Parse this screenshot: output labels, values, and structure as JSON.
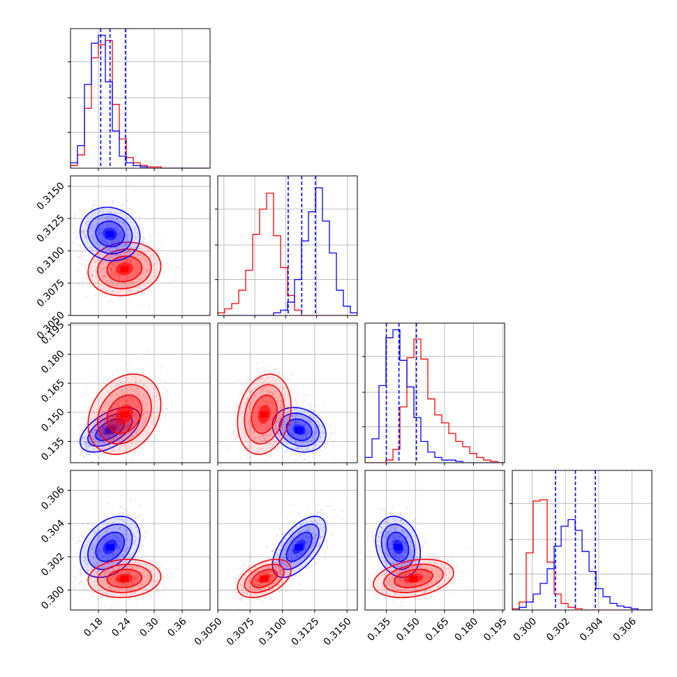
{
  "chart_data": {
    "type": "corner",
    "grid": true,
    "colors": {
      "blue": "#0000ff",
      "red": "#ff0000"
    },
    "series": [
      {
        "color": "blue",
        "mean": [
          0.205,
          0.3113,
          0.141,
          0.3026
        ],
        "std": [
          0.028,
          0.0009,
          0.005,
          0.0008
        ],
        "corr": [
          [
            1,
            -0.1,
            0.55,
            0.35
          ],
          [
            -0.1,
            1,
            -0.2,
            0.6
          ],
          [
            0.55,
            -0.2,
            1,
            -0.2
          ],
          [
            0.35,
            0.6,
            -0.2,
            1
          ]
        ]
      },
      {
        "color": "red",
        "mean": [
          0.236,
          0.3086,
          0.149,
          0.3007
        ],
        "std": [
          0.034,
          0.0009,
          0.009,
          0.0005
        ],
        "corr": [
          [
            1,
            0.1,
            0.25,
            0.1
          ],
          [
            0.1,
            1,
            0.2,
            0.45
          ],
          [
            0.25,
            0.2,
            1,
            0.3
          ],
          [
            0.1,
            0.45,
            0.3,
            1
          ]
        ]
      }
    ],
    "histograms": [
      {
        "range": [
          0.12,
          0.42
        ],
        "bins": 20,
        "blue": [
          0.04,
          0.17,
          0.63,
          0.94,
          1.0,
          0.65,
          0.28,
          0.09,
          0.04,
          0.02,
          0.01,
          0,
          0,
          0,
          0,
          0,
          0,
          0,
          0,
          0
        ],
        "red": [
          0.02,
          0.1,
          0.45,
          0.83,
          0.93,
          0.96,
          0.48,
          0.22,
          0.08,
          0.04,
          0.02,
          0.01,
          0.01,
          0,
          0,
          0,
          0,
          0,
          0,
          0
        ],
        "quantiles": [
          0.185,
          0.205,
          0.238
        ]
      },
      {
        "range": [
          0.3045,
          0.3158
        ],
        "bins": 20,
        "blue": [
          0,
          0,
          0,
          0,
          0,
          0,
          0,
          0,
          0.02,
          0.04,
          0.1,
          0.27,
          0.56,
          0.78,
          0.96,
          0.71,
          0.47,
          0.19,
          0.07,
          0.02
        ],
        "red": [
          0.02,
          0.05,
          0.09,
          0.19,
          0.34,
          0.61,
          0.8,
          0.92,
          0.6,
          0.36,
          0.15,
          0.04,
          0,
          0,
          0,
          0,
          0,
          0,
          0,
          0
        ],
        "quantiles": [
          0.3102,
          0.3113,
          0.3124
        ]
      },
      {
        "range": [
          0.124,
          0.196
        ],
        "bins": 20,
        "blue": [
          0.04,
          0.18,
          0.58,
          0.94,
          1.0,
          0.77,
          0.57,
          0.34,
          0.16,
          0.08,
          0.04,
          0.02,
          0.02,
          0.01,
          0,
          0,
          0,
          0,
          0,
          0
        ],
        "red": [
          0,
          0,
          0,
          0.02,
          0.1,
          0.42,
          0.79,
          0.93,
          0.78,
          0.48,
          0.36,
          0.3,
          0.22,
          0.16,
          0.12,
          0.07,
          0.04,
          0.02,
          0.01,
          0
        ],
        "quantiles": [
          0.135,
          0.1415,
          0.1505
        ]
      },
      {
        "range": [
          0.2988,
          0.3072
        ],
        "bins": 20,
        "blue": [
          0,
          0.02,
          0.06,
          0.12,
          0.2,
          0.31,
          0.48,
          0.63,
          0.68,
          0.6,
          0.44,
          0.29,
          0.16,
          0.1,
          0.05,
          0.03,
          0.02,
          0.01,
          0,
          0
        ],
        "red": [
          0.01,
          0.06,
          0.43,
          0.82,
          0.83,
          0.36,
          0.12,
          0.05,
          0.02,
          0.01,
          0,
          0,
          0,
          0,
          0,
          0,
          0,
          0,
          0,
          0
        ],
        "quantiles": [
          0.3014,
          0.3026,
          0.3038
        ]
      }
    ],
    "axes": [
      {
        "range": [
          0.12,
          0.42
        ],
        "ticks": [
          0.18,
          0.24,
          0.3,
          0.36
        ],
        "tick_labels": [
          "0.18",
          "0.24",
          "0.30",
          "0.36"
        ]
      },
      {
        "range": [
          0.305,
          0.3158
        ],
        "ticks": [
          0.305,
          0.3075,
          0.31,
          0.3125,
          0.315
        ],
        "tick_labels": [
          "0.3050",
          "0.3075",
          "0.3100",
          "0.3125",
          "0.3150"
        ]
      },
      {
        "range": [
          0.124,
          0.196
        ],
        "ticks": [
          0.135,
          0.15,
          0.165,
          0.18,
          0.195
        ],
        "tick_labels": [
          "0.135",
          "0.150",
          "0.165",
          "0.180",
          "0.195"
        ]
      },
      {
        "range": [
          0.2988,
          0.3072
        ],
        "ticks": [
          0.3,
          0.302,
          0.304,
          0.306
        ],
        "tick_labels": [
          "0.300",
          "0.302",
          "0.304",
          "0.306"
        ]
      }
    ]
  }
}
